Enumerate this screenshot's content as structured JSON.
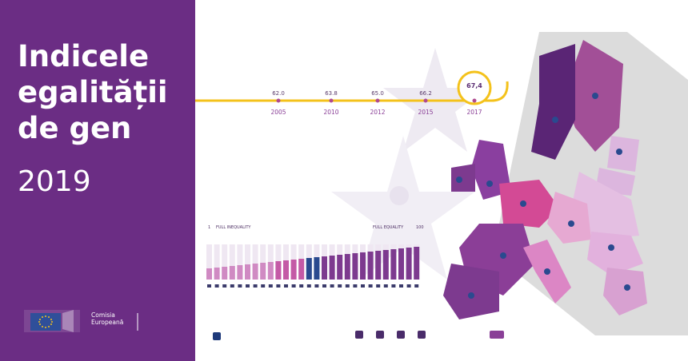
{
  "title_lines": [
    "Indicele",
    "egalității",
    "de gen"
  ],
  "year": "2019",
  "ec_label_line1": "Comisia",
  "ec_label_line2": "Europeană",
  "timeline": [
    {
      "value": "62.0",
      "year": "2005"
    },
    {
      "value": "63.8",
      "year": "2010"
    },
    {
      "value": "65.0",
      "year": "2012"
    },
    {
      "value": "66.2",
      "year": "2015"
    },
    {
      "value": "67.4",
      "year": "2017",
      "highlight": true
    }
  ],
  "highlight_value": "67,4",
  "bar_left_label": "FULL INEQUALITY",
  "bar_right_label": "FULL EQUALITY",
  "bar_right_num": "100",
  "bar_left_num": "1",
  "icons": [
    "eu-flag-icon",
    "twitter-icon",
    "youtube-icon",
    "linkedin-icon",
    "facebook-icon",
    "eige-logo-icon"
  ],
  "colors": {
    "purple_panel": "#6b2d84",
    "gold": "#f4c21b",
    "pink": "#d44a95",
    "light_purple": "#c89fd1",
    "dark_purple": "#5b2575"
  }
}
